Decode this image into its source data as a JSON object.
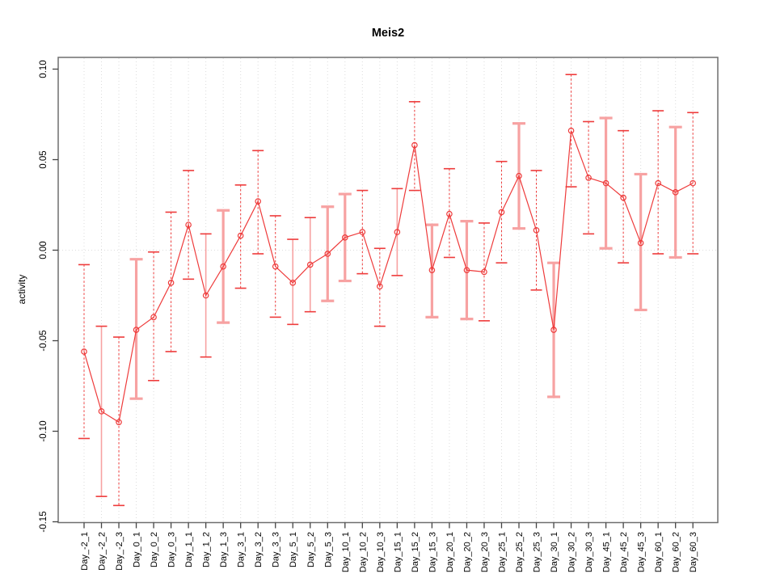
{
  "figure": {
    "title": "Meis2",
    "ylabel": "activity"
  },
  "chart_data": {
    "type": "line",
    "title": "Meis2",
    "xlabel": "",
    "ylabel": "activity",
    "ylim": [
      -0.15,
      0.1
    ],
    "yticks": [
      "0.10",
      "0.05",
      "0.00",
      "-0.05",
      "-0.10",
      "-0.15"
    ],
    "grid": {
      "vertical": "dotted line at every category",
      "horizontal": "dotted line at y=0"
    },
    "legend": "none",
    "marker": "open-circle",
    "colors": {
      "series": "#ee3b3b",
      "error_light": "#f7a2a2",
      "grid": "#dcdcdc",
      "box": "#6e6e6e",
      "tick": "#444444",
      "label": "#000000"
    },
    "categories": [
      "Day_-2_1",
      "Day_-2_2",
      "Day_-2_3",
      "Day_0_1",
      "Day_0_2",
      "Day_0_3",
      "Day_1_1",
      "Day_1_2",
      "Day_1_3",
      "Day_3_1",
      "Day_3_2",
      "Day_3_3",
      "Day_5_1",
      "Day_5_2",
      "Day_5_3",
      "Day_10_1",
      "Day_10_2",
      "Day_10_3",
      "Day_15_1",
      "Day_15_2",
      "Day_15_3",
      "Day_20_1",
      "Day_20_2",
      "Day_20_3",
      "Day_25_1",
      "Day_25_2",
      "Day_25_3",
      "Day_30_1",
      "Day_30_2",
      "Day_30_3",
      "Day_45_1",
      "Day_45_2",
      "Day_45_3",
      "Day_60_1",
      "Day_60_2",
      "Day_60_3"
    ],
    "series": [
      {
        "name": "activity",
        "values": [
          -0.056,
          -0.089,
          -0.095,
          -0.044,
          -0.037,
          -0.018,
          0.014,
          -0.025,
          -0.009,
          0.008,
          0.027,
          -0.009,
          -0.018,
          -0.008,
          -0.002,
          0.007,
          0.01,
          -0.02,
          0.01,
          0.058,
          -0.011,
          0.02,
          -0.011,
          -0.012,
          0.021,
          0.041,
          0.011,
          -0.044,
          0.066,
          0.04,
          0.037,
          0.029,
          0.004,
          0.037,
          0.032,
          0.037
        ]
      }
    ],
    "error_upper": [
      -0.008,
      -0.042,
      -0.048,
      -0.005,
      -0.001,
      0.021,
      0.044,
      0.009,
      0.022,
      0.036,
      0.055,
      0.019,
      0.006,
      0.018,
      0.024,
      0.031,
      0.033,
      0.001,
      0.034,
      0.082,
      0.014,
      0.045,
      0.016,
      0.015,
      0.049,
      0.07,
      0.044,
      -0.007,
      0.097,
      0.071,
      0.073,
      0.066,
      0.042,
      0.077,
      0.068,
      0.076
    ],
    "error_lower": [
      -0.104,
      -0.136,
      -0.141,
      -0.082,
      -0.072,
      -0.056,
      -0.016,
      -0.059,
      -0.04,
      -0.021,
      -0.002,
      -0.037,
      -0.041,
      -0.034,
      -0.028,
      -0.017,
      -0.013,
      -0.042,
      -0.014,
      0.033,
      -0.037,
      -0.004,
      -0.038,
      -0.039,
      -0.007,
      0.012,
      -0.022,
      -0.081,
      0.035,
      0.009,
      0.001,
      -0.007,
      -0.033,
      -0.002,
      -0.004,
      -0.002
    ],
    "error_bar_styles": [
      "dashed",
      "soft",
      "dashed",
      "thick",
      "dashed",
      "dashed",
      "dashed",
      "soft",
      "thick",
      "dashed",
      "dashed",
      "dashed",
      "soft",
      "soft",
      "thick",
      "thick",
      "dashed",
      "dashed",
      "soft",
      "dashed",
      "thick",
      "dashed",
      "thick",
      "dashed",
      "dashed",
      "thick",
      "dashed",
      "thick",
      "dashed",
      "dashed",
      "thick",
      "dashed",
      "thick",
      "dashed",
      "thick",
      "dashed"
    ]
  }
}
